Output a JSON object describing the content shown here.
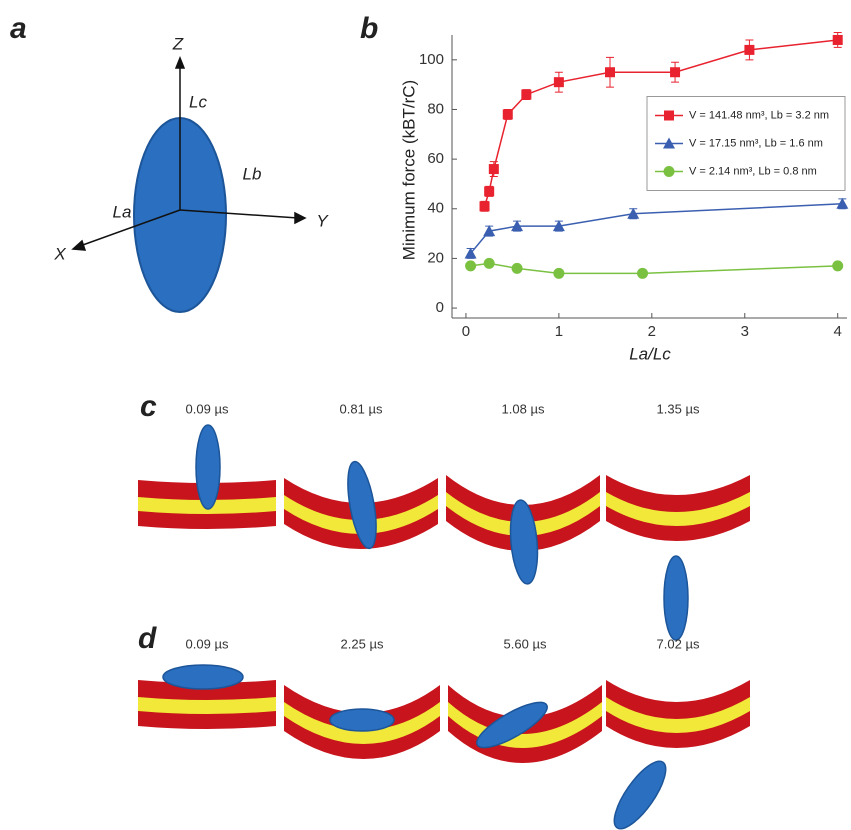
{
  "panel_a": {
    "label": "a",
    "axes": {
      "z": "Z",
      "y": "Y",
      "x": "X"
    },
    "dimensions": {
      "c": "Lc",
      "b": "Lb",
      "a": "La"
    }
  },
  "chart_data": {
    "type": "line",
    "panel_label": "b",
    "y_label": "Minimum force (kBT/rC)",
    "x_label": "La/Lc",
    "xlim": [
      -0.15,
      4.1
    ],
    "xticks": [
      0,
      1,
      2,
      3,
      4
    ],
    "ylim": [
      -4,
      110
    ],
    "yticks": [
      0,
      20,
      40,
      60,
      80,
      100
    ],
    "legend": "center right",
    "series": [
      {
        "name": "V = 141.48 nm³, Lb = 3.2 nm",
        "color": "#e8222e",
        "marker": "square",
        "x": [
          0.2,
          0.25,
          0.3,
          0.45,
          0.65,
          1.0,
          1.55,
          2.25,
          3.05,
          4.0
        ],
        "values": [
          41,
          47,
          56,
          78,
          86,
          91,
          95,
          95,
          104,
          108
        ],
        "errors": [
          2,
          2,
          3,
          2,
          2,
          4,
          6,
          4,
          4,
          3
        ]
      },
      {
        "name": "V = 17.15 nm³, Lb = 1.6 nm",
        "color": "#3b5fb0",
        "marker": "triangle",
        "x": [
          0.05,
          0.25,
          0.55,
          1.0,
          1.8,
          4.05
        ],
        "values": [
          22,
          31,
          33,
          33,
          38,
          42
        ],
        "errors": [
          2,
          2,
          2,
          2,
          2,
          2
        ]
      },
      {
        "name": "V = 2.14 nm³, Lb = 0.8 nm",
        "color": "#7ac142",
        "marker": "circle",
        "x": [
          0.05,
          0.25,
          0.55,
          1.0,
          1.9,
          4.0
        ],
        "values": [
          17,
          18,
          16,
          14,
          14,
          17
        ]
      }
    ]
  },
  "panel_c": {
    "label": "c",
    "times": [
      "0.09 µs",
      "0.81 µs",
      "1.08 µs",
      "1.35 µs"
    ]
  },
  "panel_d": {
    "label": "d",
    "times": [
      "0.09 µs",
      "2.25 µs",
      "5.60 µs",
      "7.02 µs"
    ]
  }
}
